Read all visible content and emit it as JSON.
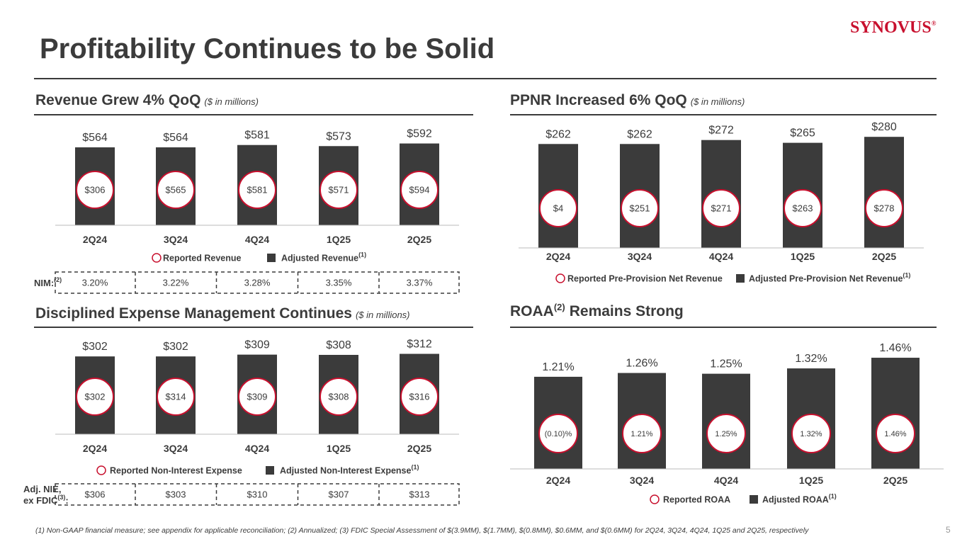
{
  "header": {
    "title": "Profitability Continues to be Solid",
    "logo": "SYNOVUS",
    "logo_mark": "®"
  },
  "chart_data": [
    {
      "type": "bar",
      "title": "Revenue Grew 4% QoQ",
      "subtitle": "($ in millions)",
      "categories": [
        "2Q24",
        "3Q24",
        "4Q24",
        "1Q25",
        "2Q25"
      ],
      "series": [
        {
          "name": "Reported Revenue",
          "color": "#c8102e",
          "values": [
            306,
            565,
            581,
            571,
            594
          ],
          "value_labels": [
            "$306",
            "$565",
            "$581",
            "$571",
            "$594"
          ]
        },
        {
          "name": "Adjusted Revenue",
          "footnote_ref": "(1)",
          "color": "#3b3b3b",
          "values": [
            564,
            564,
            581,
            573,
            592
          ],
          "value_labels": [
            "$564",
            "$564",
            "$581",
            "$573",
            "$592"
          ]
        }
      ],
      "ylim": [
        0,
        600
      ]
    },
    {
      "type": "bar",
      "title": "PPNR Increased 6% QoQ",
      "subtitle": "($ in millions)",
      "categories": [
        "2Q24",
        "3Q24",
        "4Q24",
        "1Q25",
        "2Q25"
      ],
      "series": [
        {
          "name": "Reported Pre-Provision Net Revenue",
          "color": "#c8102e",
          "values": [
            4,
            251,
            271,
            263,
            278
          ],
          "value_labels": [
            "$4",
            "$251",
            "$271",
            "$263",
            "$278"
          ]
        },
        {
          "name": "Adjusted Pre-Provision Net Revenue",
          "footnote_ref": "(1)",
          "color": "#3b3b3b",
          "values": [
            262,
            262,
            272,
            265,
            280
          ],
          "value_labels": [
            "$262",
            "$262",
            "$272",
            "$265",
            "$280"
          ]
        }
      ],
      "ylim": [
        0,
        300
      ]
    },
    {
      "type": "bar",
      "title": "Disciplined Expense Management Continues",
      "subtitle": "($ in millions)",
      "categories": [
        "2Q24",
        "3Q24",
        "4Q24",
        "1Q25",
        "2Q25"
      ],
      "series": [
        {
          "name": "Reported Non-Interest Expense",
          "color": "#c8102e",
          "values": [
            302,
            314,
            309,
            308,
            316
          ],
          "value_labels": [
            "$302",
            "$314",
            "$309",
            "$308",
            "$316"
          ]
        },
        {
          "name": "Adjusted Non-Interest Expense",
          "footnote_ref": "(1)",
          "color": "#3b3b3b",
          "values": [
            302,
            302,
            309,
            308,
            312
          ],
          "value_labels": [
            "$302",
            "$302",
            "$309",
            "$308",
            "$312"
          ]
        }
      ],
      "ylim": [
        0,
        330
      ]
    },
    {
      "type": "bar",
      "title": "ROAA",
      "title_note": "(2)",
      "title_suffix": "Remains Strong",
      "categories": [
        "2Q24",
        "3Q24",
        "4Q24",
        "1Q25",
        "2Q25"
      ],
      "series": [
        {
          "name": "Reported ROAA",
          "color": "#c8102e",
          "values": [
            -0.1,
            1.21,
            1.25,
            1.32,
            1.46
          ],
          "value_labels": [
            "(0.10)%",
            "1.21%",
            "1.25%",
            "1.32%",
            "1.46%"
          ]
        },
        {
          "name": "Adjusted ROAA",
          "footnote_ref": "(1)",
          "color": "#3b3b3b",
          "values": [
            1.21,
            1.26,
            1.25,
            1.32,
            1.46
          ],
          "value_labels": [
            "1.21%",
            "1.26%",
            "1.25%",
            "1.32%",
            "1.46%"
          ]
        }
      ],
      "ylim": [
        0,
        1.6
      ]
    }
  ],
  "nim": {
    "label": "NIM:",
    "note": "(2)",
    "values": [
      "3.20%",
      "3.22%",
      "3.28%",
      "3.35%",
      "3.37%"
    ]
  },
  "adj_nie": {
    "label_lines": [
      "Adj. NIE,",
      "ex FDIC"
    ],
    "note": "(3)",
    "suffix": ":",
    "values": [
      "$306",
      "$303",
      "$310",
      "$307",
      "$313"
    ]
  },
  "footnote": "(1) Non-GAAP financial measure; see appendix for applicable reconciliation; (2) Annualized; (3) FDIC Special Assessment of $(3.9MM), $(1.7MM), $(0.8MM), $0.6MM, and $(0.6MM) for 2Q24, 3Q24, 4Q24, 1Q25 and 2Q25, respectively",
  "page_number": "5"
}
